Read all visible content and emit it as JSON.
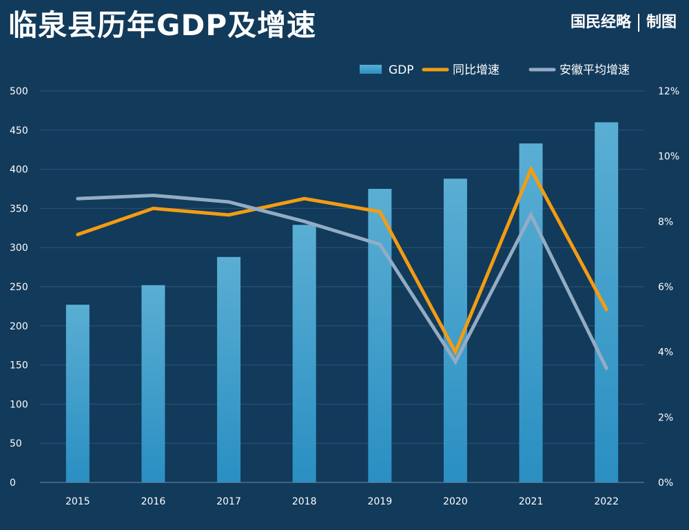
{
  "header": {
    "title": "临泉县历年GDP及增速",
    "source_part1": "国民经略",
    "source_part2": "制图"
  },
  "colors": {
    "background": "#123a5b",
    "bar": "#3aa0cf",
    "growth_line": "#f39c12",
    "anhui_line": "#93acc4"
  },
  "chart_data": {
    "type": "bar",
    "categories": [
      "2015",
      "2016",
      "2017",
      "2018",
      "2019",
      "2020",
      "2021",
      "2022"
    ],
    "series": [
      {
        "name": "GDP",
        "type": "bar",
        "axis": "left",
        "values": [
          227,
          252,
          288,
          329,
          375,
          388,
          433,
          460
        ]
      },
      {
        "name": "同比增速",
        "type": "line",
        "axis": "right",
        "values": [
          7.6,
          8.4,
          8.2,
          8.7,
          8.3,
          4.0,
          9.6,
          5.3
        ]
      },
      {
        "name": "安徽平均增速",
        "type": "line",
        "axis": "right",
        "values": [
          8.7,
          8.8,
          8.6,
          8.0,
          7.3,
          3.7,
          8.2,
          3.5
        ]
      }
    ],
    "y_left": {
      "ylim": [
        0,
        500
      ],
      "ticks": [
        "0",
        "50",
        "100",
        "150",
        "200",
        "250",
        "300",
        "350",
        "400",
        "450",
        "500"
      ]
    },
    "y_right": {
      "ylim": [
        0,
        12
      ],
      "ticks": [
        "0%",
        "2%",
        "4%",
        "6%",
        "8%",
        "10%",
        "12%"
      ]
    },
    "grid": true,
    "legend": "top-right"
  }
}
